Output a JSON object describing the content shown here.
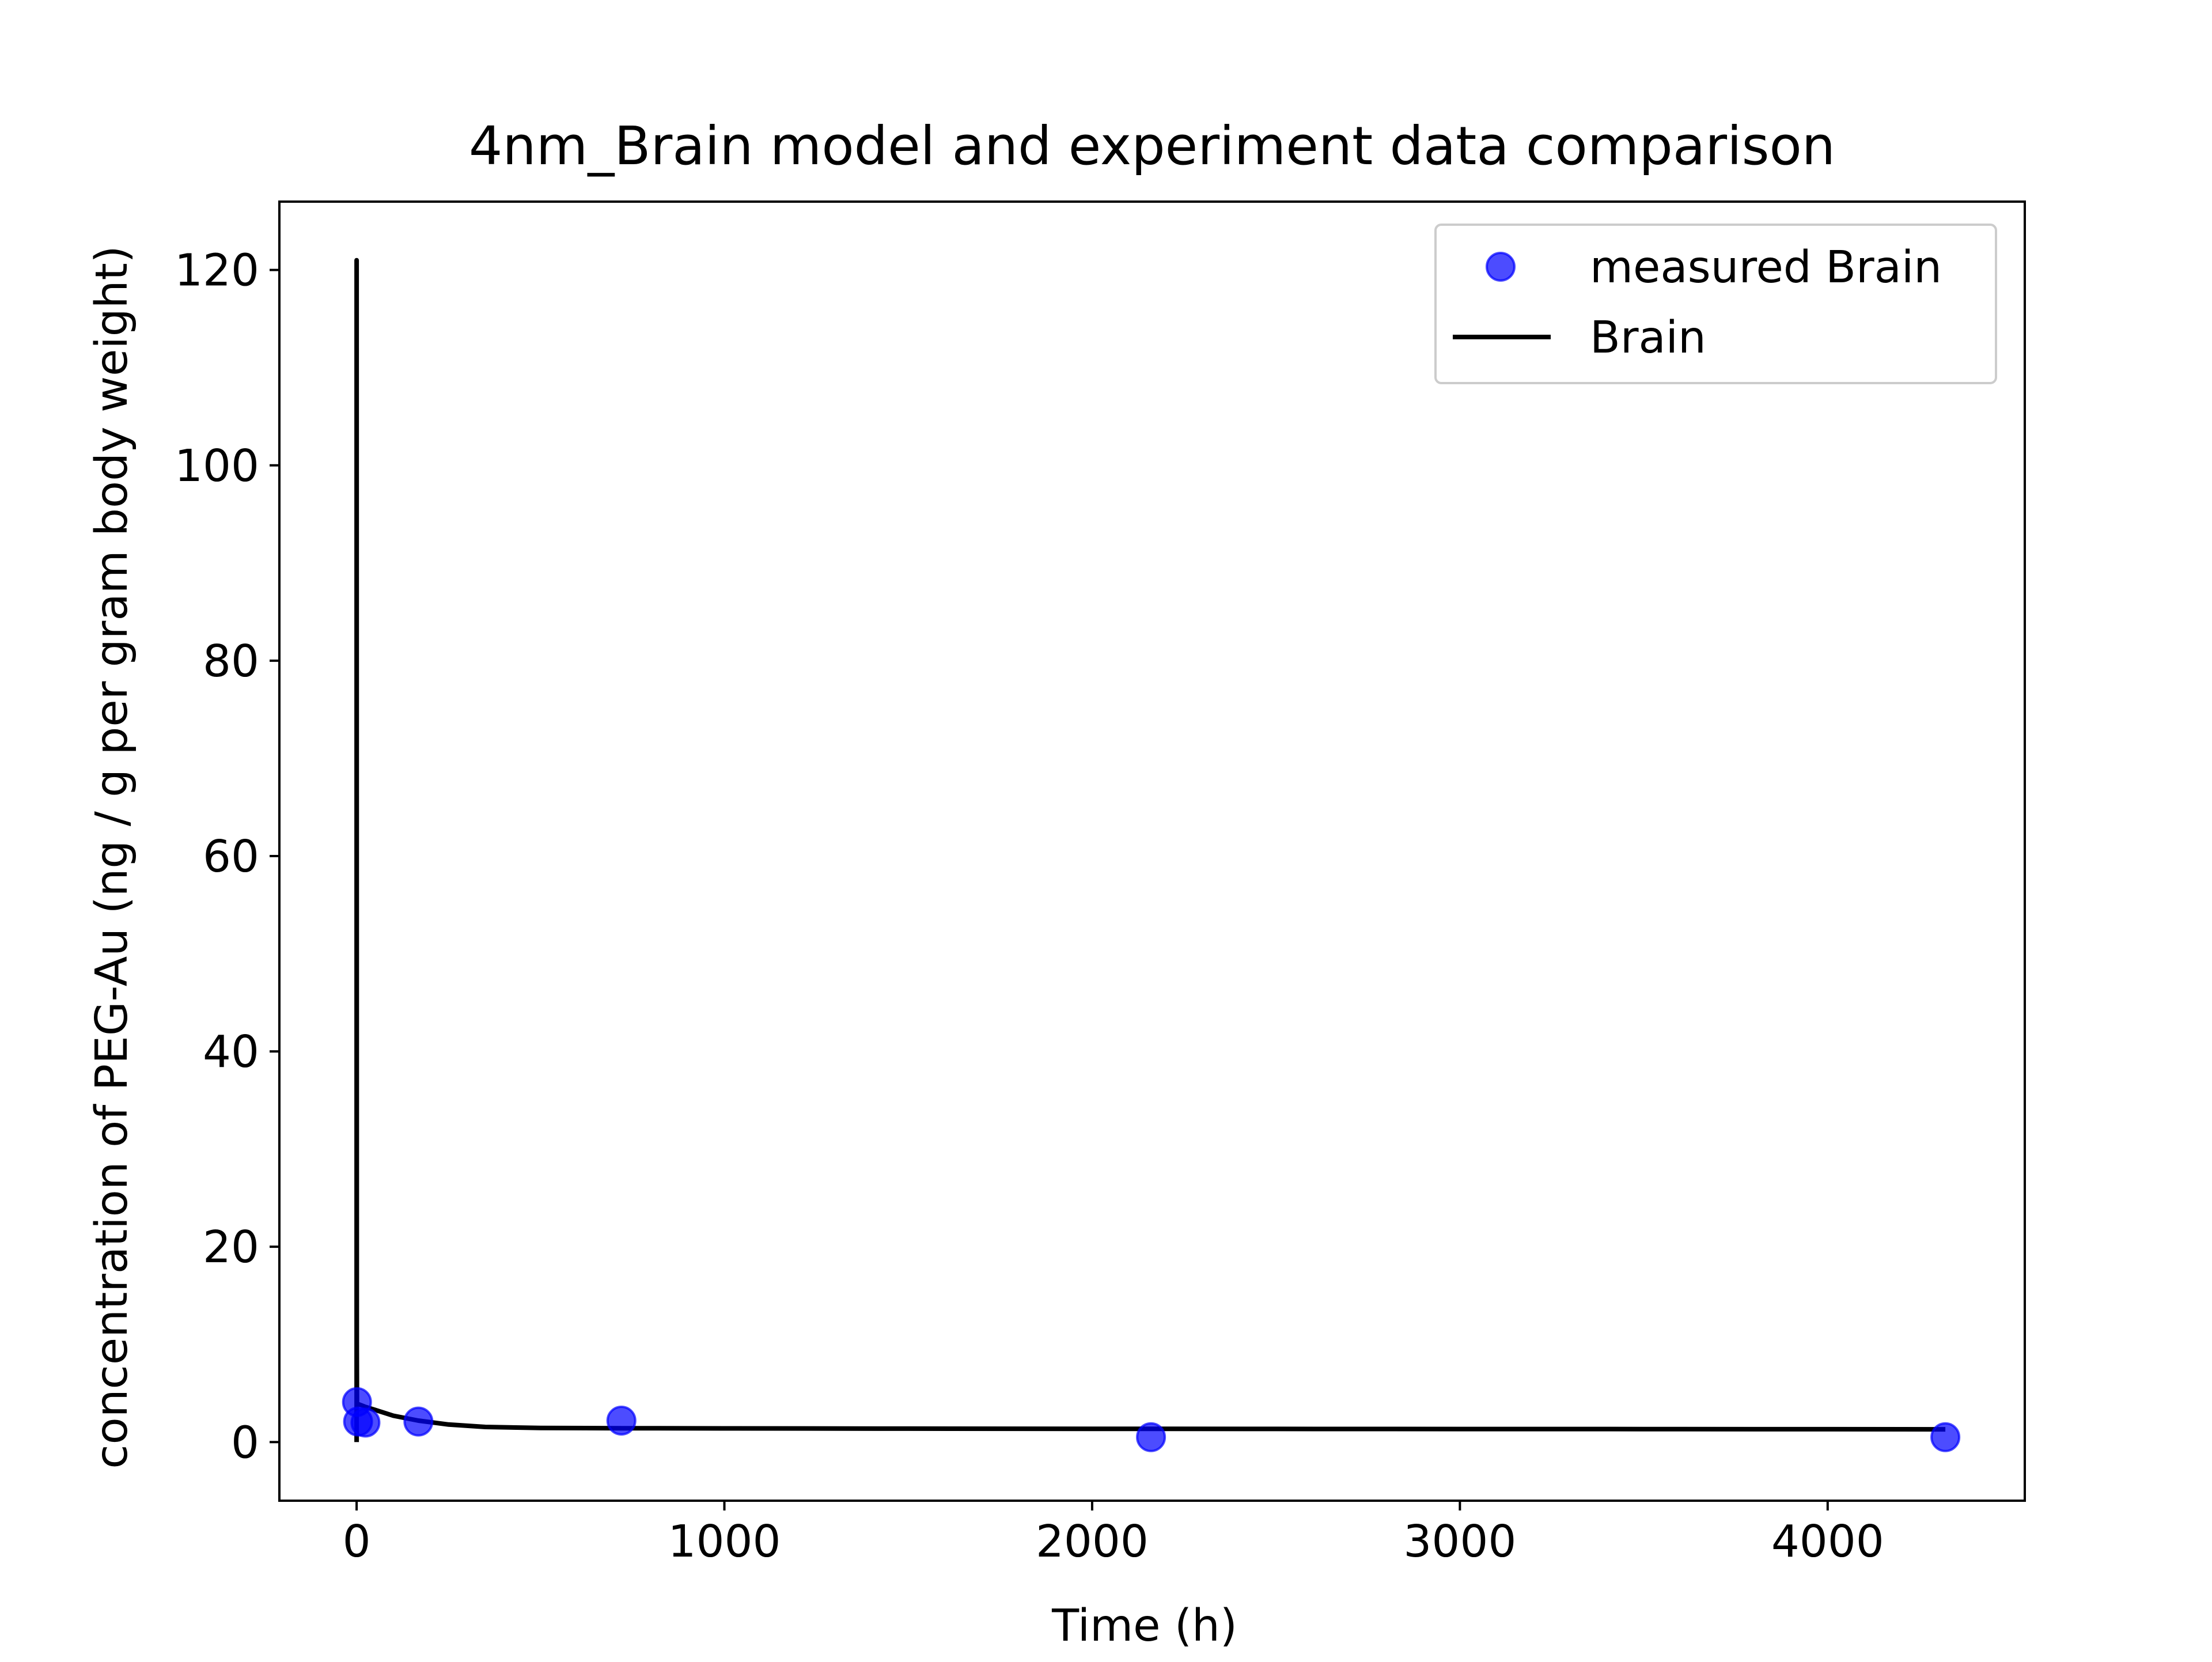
{
  "chart_data": {
    "type": "line",
    "title": "4nm_Brain model and experiment data comparison",
    "xlabel": "Time (h)",
    "ylabel": "concentration of PEG-Au (ng / g per gram body weight)",
    "xlim": [
      -210,
      4536
    ],
    "ylim": [
      -6,
      127
    ],
    "x_ticks": [
      0,
      1000,
      2000,
      3000,
      4000
    ],
    "y_ticks": [
      0,
      20,
      40,
      60,
      80,
      100,
      120
    ],
    "grid": false,
    "legend_position": "top-right",
    "series": [
      {
        "name": "measured Brain",
        "kind": "scatter",
        "color": "#0000ff",
        "x": [
          1,
          4,
          24,
          168,
          720,
          2160,
          4320
        ],
        "y": [
          4.1,
          2.1,
          2.0,
          2.1,
          2.2,
          0.5,
          0.5
        ]
      },
      {
        "name": "Brain",
        "kind": "line",
        "color": "#000000",
        "x": [
          0,
          0,
          0.5,
          1,
          3,
          10,
          24,
          50,
          100,
          168,
          250,
          350,
          500,
          720,
          1000,
          1500,
          2000,
          2500,
          3000,
          3500,
          4000,
          4320
        ],
        "y": [
          0,
          121,
          10,
          4.0,
          3.9,
          3.8,
          3.6,
          3.3,
          2.7,
          2.2,
          1.8,
          1.55,
          1.45,
          1.42,
          1.4,
          1.38,
          1.36,
          1.35,
          1.34,
          1.33,
          1.32,
          1.31
        ]
      }
    ]
  }
}
